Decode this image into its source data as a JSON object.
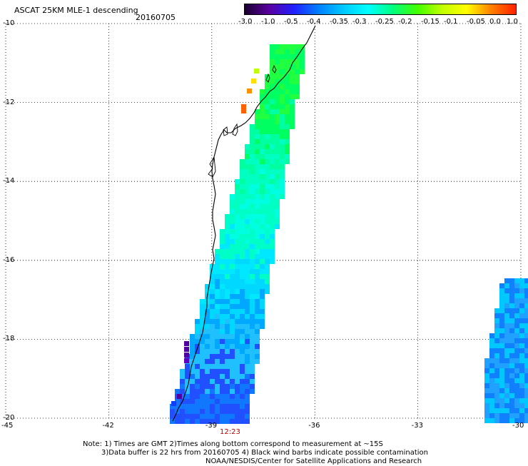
{
  "header": {
    "title": "ASCAT 25KM MLE-1 descending",
    "date": "20160705"
  },
  "colorbar": {
    "ticks": [
      "-3.0",
      "-1.0",
      "-0.5",
      "-0.4",
      "-0.35",
      "-0.3",
      "-0.25",
      "-0.2",
      "-0.15",
      "-0.1",
      "-0.05",
      "0.0",
      "1.0"
    ],
    "gradient": [
      "#1a0030",
      "#5a00a0",
      "#2020ff",
      "#0080ff",
      "#00c8ff",
      "#00ffff",
      "#00ff80",
      "#40ff00",
      "#c0ff00",
      "#ffff00",
      "#ff8000",
      "#ff2000"
    ]
  },
  "axes": {
    "lat_ticks": [
      "-10",
      "-12",
      "-14",
      "-16",
      "-18",
      "-20"
    ],
    "lon_ticks": [
      "-45",
      "-42",
      "-39",
      "-36",
      "-33",
      "-30"
    ],
    "lat_range": [
      -20,
      -10
    ],
    "lon_range": [
      -45,
      -30
    ],
    "time_label": "12:23"
  },
  "notes": {
    "line1": "Note: 1) Times are GMT 2)Times along bottom correspond to measurement at ~15S",
    "line2": "3)Data buffer is 22 hrs from 20160705 4) Black wind barbs indicate possible contamination",
    "line3": "NOAA/NESDIS/Center for Satellite Applications and Research"
  },
  "colors": {
    "coast": "#000000",
    "grid": "#000000",
    "swath_dominant": "#00ffb0",
    "time_label": "#c00000"
  }
}
